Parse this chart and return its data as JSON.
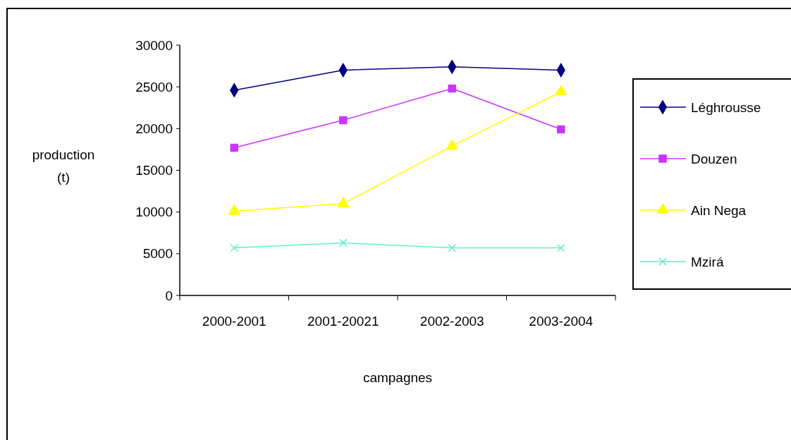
{
  "chart_data": {
    "type": "line",
    "xlabel": "campagnes",
    "ylabel": "production (t)",
    "categories": [
      "2000-2001",
      "2001-20021",
      "2002-2003",
      "2003-2004"
    ],
    "ylim": [
      0,
      30000
    ],
    "yticks": [
      0,
      5000,
      10000,
      15000,
      20000,
      25000,
      30000
    ],
    "legend": "right",
    "grid": false,
    "series": [
      {
        "name": "Léghrousse",
        "color": "#000080",
        "marker": "diamond",
        "values": [
          24600,
          27000,
          27400,
          27000
        ]
      },
      {
        "name": "Douzen",
        "color": "#cc33ff",
        "marker": "square",
        "values": [
          17700,
          21000,
          24800,
          19900
        ]
      },
      {
        "name": "Ain Nega",
        "color": "#ffff00",
        "marker": "triangle",
        "values": [
          10100,
          11000,
          17900,
          24400
        ]
      },
      {
        "name": "Mzirá",
        "color": "#66eecc",
        "marker": "cross",
        "values": [
          5700,
          6300,
          5700,
          5700
        ]
      }
    ]
  }
}
